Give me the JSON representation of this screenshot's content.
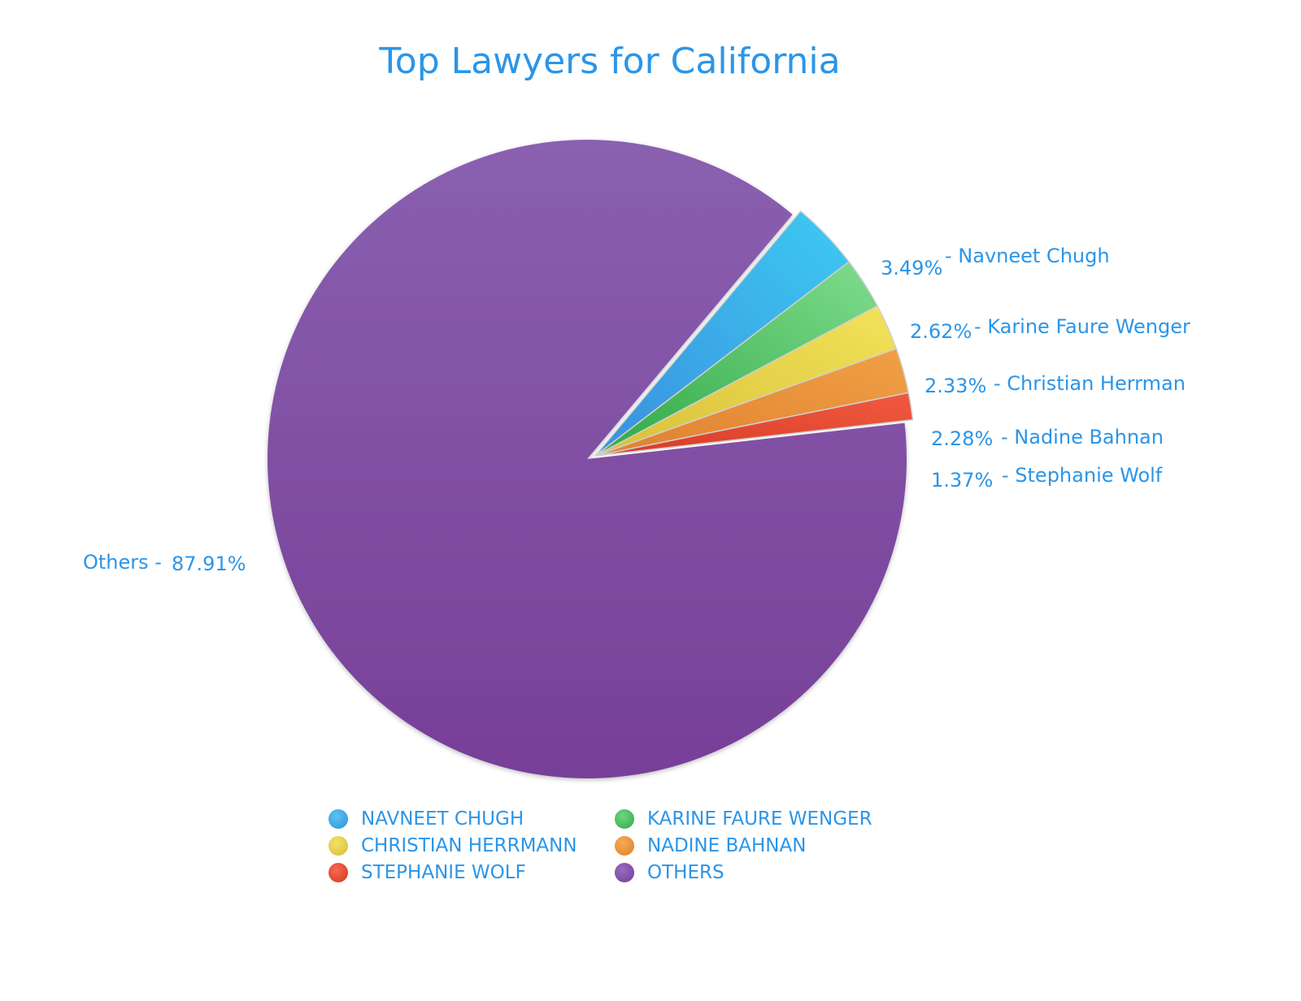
{
  "chart_data": {
    "type": "pie",
    "title": "Top Lawyers for California",
    "slices": [
      {
        "name": "Navneet Chugh",
        "value": 3.49,
        "pct_label": "3.49%",
        "label": "- Navneet Chugh",
        "legend": "NAVNEET CHUGH",
        "color": "#3aa3e6",
        "exploded": true
      },
      {
        "name": "Karine Faure Wenger",
        "value": 2.62,
        "pct_label": "2.62%",
        "label": "- Karine Faure Wenger",
        "legend": "KARINE FAURE WENGER",
        "color": "#4cbf5e",
        "exploded": true
      },
      {
        "name": "Christian Herrman",
        "value": 2.33,
        "pct_label": "2.33%",
        "label": "- Christian Herrman",
        "legend": "CHRISTIAN HERRMANN",
        "color": "#e6d44a",
        "exploded": true
      },
      {
        "name": "Nadine Bahnan",
        "value": 2.28,
        "pct_label": "2.28%",
        "label": "- Nadine Bahnan",
        "legend": "NADINE BAHNAN",
        "color": "#e8903a",
        "exploded": true
      },
      {
        "name": "Stephanie Wolf",
        "value": 1.37,
        "pct_label": "1.37%",
        "label": "- Stephanie Wolf",
        "legend": "STEPHANIE WOLF",
        "color": "#e84a35",
        "exploded": true
      },
      {
        "name": "Others",
        "value": 87.91,
        "pct_label": "87.91%",
        "label": "Others -",
        "legend": "OTHERS",
        "color": "#7e4ea3",
        "exploded": false
      }
    ],
    "legend_placement": "bottom"
  }
}
